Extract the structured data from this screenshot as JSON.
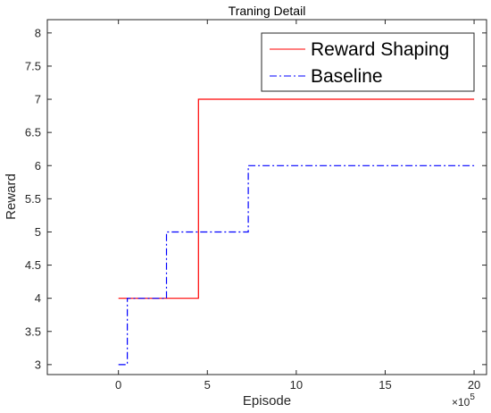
{
  "chart_data": {
    "type": "line",
    "title": "Traning Detail",
    "xlabel": "Episode",
    "ylabel": "Reward",
    "x_exponent_base": "×10",
    "x_exponent_power": "5",
    "xlim": [
      -4,
      20.7
    ],
    "ylim": [
      2.85,
      8.2
    ],
    "xticks": [
      0,
      5,
      10,
      15,
      20
    ],
    "xtick_labels": [
      "0",
      "5",
      "10",
      "15",
      "20"
    ],
    "yticks": [
      3,
      3.5,
      4,
      4.5,
      5,
      5.5,
      6,
      6.5,
      7,
      7.5,
      8
    ],
    "ytick_labels": [
      "3",
      "3.5",
      "4",
      "4.5",
      "5",
      "5.5",
      "6",
      "6.5",
      "7",
      "7.5",
      "8"
    ],
    "grid": false,
    "legend_position": "top-right",
    "series": [
      {
        "name": "Reward Shaping",
        "color": "#ff0000",
        "line_style": "solid",
        "x": [
          0,
          4.5,
          4.5,
          20
        ],
        "y": [
          4,
          4,
          7,
          7
        ]
      },
      {
        "name": "Baseline",
        "color": "#0000ff",
        "line_style": "dashdot",
        "x": [
          0,
          0.5,
          0.5,
          2.7,
          2.7,
          7.3,
          7.3,
          20
        ],
        "y": [
          3,
          3,
          4,
          4,
          5,
          5,
          6,
          6
        ]
      }
    ]
  }
}
